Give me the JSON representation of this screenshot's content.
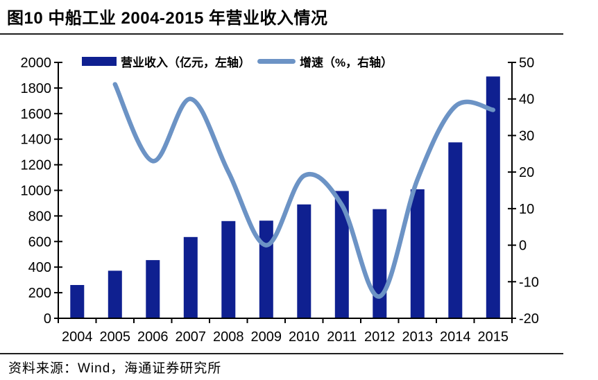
{
  "header": {
    "title": "图10 中船工业 2004-2015 年营业收入情况"
  },
  "legend": {
    "bar_label": "营业收入（亿元，左轴）",
    "line_label": "增速（%，右轴）"
  },
  "footer": {
    "source": "资料来源：Wind，海通证券研究所"
  },
  "colors": {
    "bar": "#0f2090",
    "line": "#6c93c5",
    "axis": "#000000",
    "rule": "#1f1f1f"
  },
  "chart_data": {
    "type": "bar",
    "subtype": "bar-line-combo",
    "title": "图10 中船工业 2004-2015 年营业收入情况",
    "categories": [
      "2004",
      "2005",
      "2006",
      "2007",
      "2008",
      "2009",
      "2010",
      "2011",
      "2012",
      "2013",
      "2014",
      "2015"
    ],
    "series": [
      {
        "name": "营业收入（亿元，左轴）",
        "type": "bar",
        "axis": "left",
        "values": [
          260,
          372,
          455,
          635,
          760,
          763,
          890,
          995,
          853,
          1008,
          1375,
          1890
        ]
      },
      {
        "name": "增速（%，右轴）",
        "type": "line",
        "axis": "right",
        "smooth": true,
        "values": [
          null,
          44,
          23,
          40,
          20,
          0,
          19,
          11,
          -14,
          18,
          38,
          37
        ]
      }
    ],
    "left_axis": {
      "min": 0,
      "max": 2000,
      "step": 200,
      "ticks": [
        "2000",
        "1800",
        "1600",
        "1400",
        "1200",
        "1000",
        "800",
        "600",
        "400",
        "200",
        "0"
      ]
    },
    "right_axis": {
      "min": -20,
      "max": 50,
      "step": 10,
      "ticks": [
        "50",
        "40",
        "30",
        "20",
        "10",
        "0",
        "-10",
        "-20"
      ]
    },
    "legend_position": "top",
    "grid": false,
    "source": "资料来源：Wind，海通证券研究所"
  }
}
